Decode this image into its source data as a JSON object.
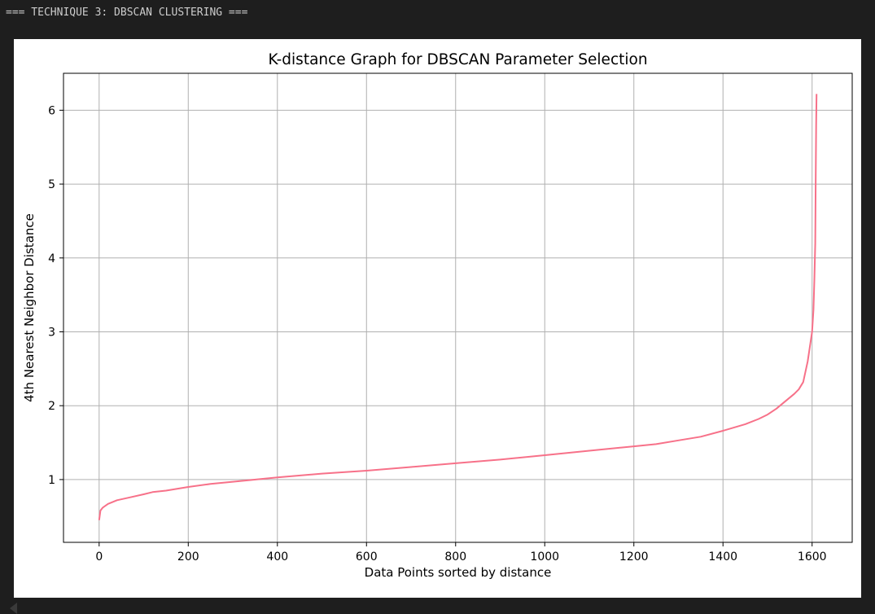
{
  "console": {
    "output_line": "=== TECHNIQUE 3: DBSCAN CLUSTERING ==="
  },
  "chart_data": {
    "type": "line",
    "title": "K-distance Graph for DBSCAN Parameter Selection",
    "xlabel": "Data Points sorted by distance",
    "ylabel": "4th Nearest Neighbor Distance",
    "xlim": [
      -80,
      1690
    ],
    "ylim": [
      0.15,
      6.5
    ],
    "xticks": [
      0,
      200,
      400,
      600,
      800,
      1000,
      1200,
      1400,
      1600
    ],
    "yticks": [
      1,
      2,
      3,
      4,
      5,
      6
    ],
    "grid": true,
    "line_color": "#f77189",
    "series": [
      {
        "x": [
          0,
          3,
          8,
          20,
          40,
          70,
          100,
          120,
          150,
          200,
          250,
          300,
          400,
          500,
          600,
          700,
          800,
          900,
          1000,
          1100,
          1200,
          1250,
          1300,
          1350,
          1400,
          1450,
          1480,
          1500,
          1520,
          1540,
          1560,
          1570,
          1580,
          1590,
          1595,
          1600,
          1603,
          1605,
          1607,
          1608,
          1609,
          1610
        ],
        "y": [
          0.45,
          0.58,
          0.62,
          0.67,
          0.72,
          0.76,
          0.8,
          0.83,
          0.85,
          0.9,
          0.94,
          0.97,
          1.03,
          1.08,
          1.12,
          1.17,
          1.22,
          1.27,
          1.33,
          1.39,
          1.45,
          1.48,
          1.53,
          1.58,
          1.66,
          1.75,
          1.82,
          1.88,
          1.96,
          2.06,
          2.16,
          2.22,
          2.32,
          2.6,
          2.8,
          3.0,
          3.3,
          3.7,
          4.2,
          5.0,
          5.8,
          6.22
        ]
      }
    ]
  }
}
